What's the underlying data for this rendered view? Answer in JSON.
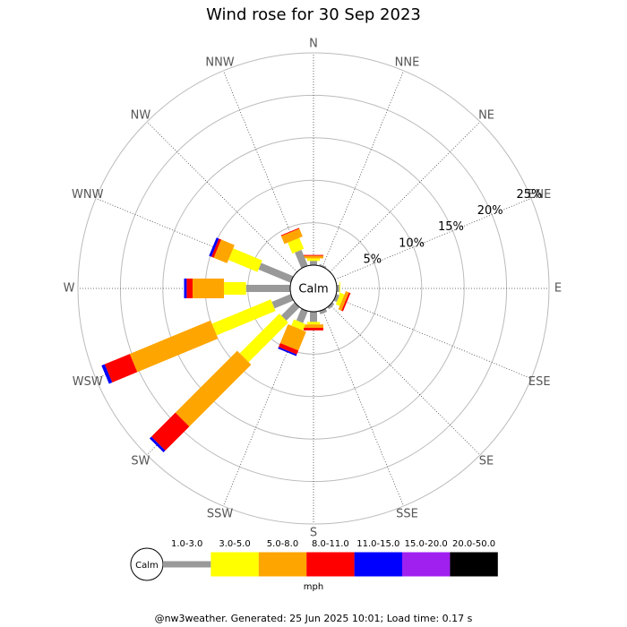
{
  "chart_data": {
    "type": "windrose",
    "title": "Wind rose for 30 Sep 2023",
    "calm_label": "Calm",
    "categories": [
      "N",
      "NNE",
      "NE",
      "ENE",
      "E",
      "ESE",
      "SE",
      "SSE",
      "S",
      "SSW",
      "SW",
      "WSW",
      "W",
      "WNW",
      "NW",
      "NNW"
    ],
    "series": [
      {
        "name": "1.0-3.0",
        "color": "#999999",
        "values": [
          0.5,
          0.2,
          0,
          0,
          0.3,
          0.4,
          0.3,
          0.4,
          1.2,
          1.5,
          2.2,
          2.4,
          5.2,
          4.1,
          0,
          2.0
        ]
      },
      {
        "name": "3.0-5.0",
        "color": "#ffff00",
        "values": [
          0.3,
          0,
          0,
          0,
          0.1,
          0.5,
          0,
          0,
          0.3,
          0.8,
          6.6,
          7.5,
          2.6,
          3.7,
          0,
          1.4
        ]
      },
      {
        "name": "5.0-8.0",
        "color": "#ffa500",
        "values": [
          0.3,
          0,
          0,
          0,
          0,
          0.4,
          0,
          0,
          0.4,
          2.4,
          10.3,
          10.3,
          3.7,
          1.7,
          0,
          1.0
        ]
      },
      {
        "name": "8.0-11.0",
        "color": "#ff0000",
        "values": [
          0.1,
          0,
          0,
          0,
          0,
          0.2,
          0,
          0,
          0.3,
          0.5,
          4.0,
          3.2,
          0.7,
          0.3,
          0,
          0.1
        ]
      },
      {
        "name": "11.0-15.0",
        "color": "#0000ff",
        "values": [
          0,
          0,
          0,
          0,
          0,
          0,
          0,
          0,
          0,
          0.2,
          0.3,
          0.4,
          0.3,
          0.3,
          0,
          0
        ]
      },
      {
        "name": "15.0-20.0",
        "color": "#a020f0",
        "values": [
          0,
          0,
          0,
          0,
          0,
          0,
          0,
          0,
          0,
          0,
          0,
          0,
          0,
          0,
          0,
          0
        ]
      },
      {
        "name": "20.0-50.0",
        "color": "#000000",
        "values": [
          0,
          0,
          0,
          0,
          0,
          0,
          0,
          0,
          0,
          0,
          0,
          0,
          0,
          0,
          0,
          0
        ]
      }
    ],
    "rlim": [
      0,
      25
    ],
    "rticks": [
      {
        "value": 5,
        "label": "5%"
      },
      {
        "value": 10,
        "label": "10%"
      },
      {
        "value": 15,
        "label": "15%"
      },
      {
        "value": 20,
        "label": "20%"
      },
      {
        "value": 25,
        "label": "25%"
      }
    ],
    "legend_unit": "mph",
    "footer": "@nw3weather. Generated: 25 Jun 2025 10:01; Load time: 0.17 s"
  }
}
